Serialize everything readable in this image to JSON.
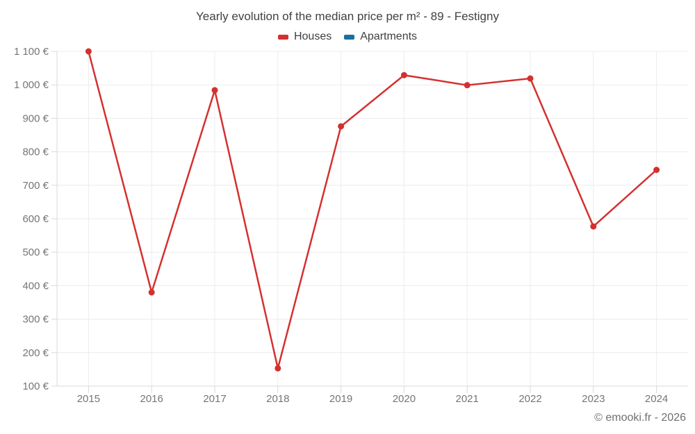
{
  "chart_data": {
    "type": "line",
    "title": "Yearly evolution of the median price per m² - 89 - Festigny",
    "categories": [
      "2015",
      "2016",
      "2017",
      "2018",
      "2019",
      "2020",
      "2021",
      "2022",
      "2023",
      "2024"
    ],
    "series": [
      {
        "name": "Houses",
        "color": "#d4302f",
        "values": [
          1100,
          380,
          984,
          153,
          876,
          1029,
          999,
          1019,
          577,
          746
        ]
      },
      {
        "name": "Apartments",
        "color": "#1b6fa3",
        "values": []
      }
    ],
    "xlabel": "",
    "ylabel": "",
    "ylim": [
      100,
      1100
    ],
    "ytick_step": 100,
    "ytick_suffix": " €",
    "grid": true,
    "legend_position": "top"
  },
  "footer": {
    "copyright": "© emooki.fr - 2026"
  },
  "colors": {
    "grid": "#ececec",
    "axis": "#d9d9d9",
    "tick_label": "#757575",
    "title": "#414141",
    "background": "#ffffff"
  }
}
